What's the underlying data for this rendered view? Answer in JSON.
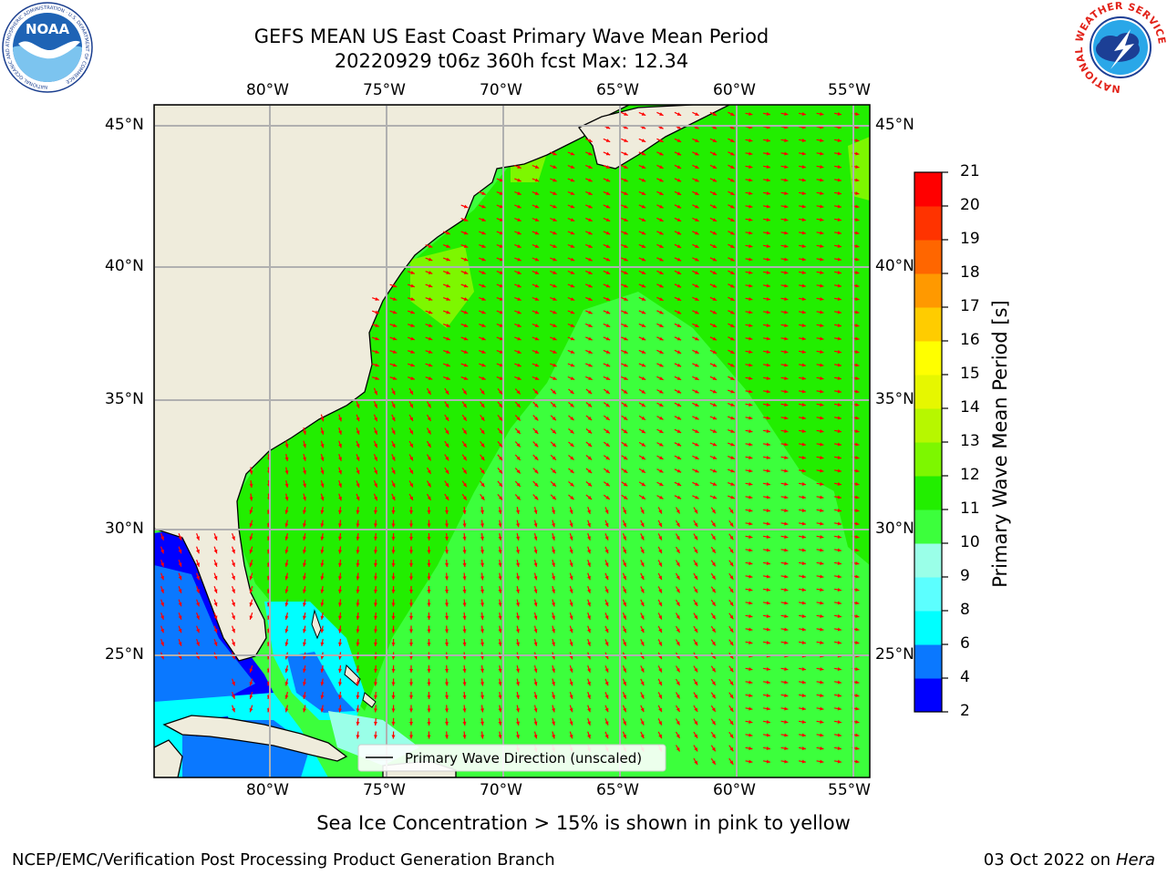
{
  "title": {
    "line1": "GEFS MEAN US East Coast Primary Wave Mean Period",
    "line2": "20220929 t06z 360h fcst   Max: 12.34"
  },
  "map": {
    "lon_labels": [
      "80°W",
      "75°W",
      "70°W",
      "65°W",
      "60°W",
      "55°W"
    ],
    "lat_labels": [
      "45°N",
      "40°N",
      "35°N",
      "30°N",
      "25°N"
    ],
    "legend_label": "Primary Wave Direction (unscaled)",
    "land_color": "#efecdc",
    "arrow_color": "#ff0000"
  },
  "colorbar": {
    "label": "Primary Wave Mean Period [s]",
    "ticks": [
      "2",
      "4",
      "6",
      "8",
      "9",
      "10",
      "11",
      "12",
      "13",
      "14",
      "15",
      "16",
      "17",
      "18",
      "19",
      "20",
      "21"
    ],
    "colors": [
      "#0000ff",
      "#0a78ff",
      "#00ffff",
      "#5cffff",
      "#9affe8",
      "#3cff3c",
      "#22ee00",
      "#7df700",
      "#b7f700",
      "#e6f700",
      "#ffff00",
      "#ffcc00",
      "#ff9900",
      "#ff6600",
      "#ff3300",
      "#ff0000"
    ]
  },
  "subtitle": "Sea Ice Concentration > 15% is shown in pink to yellow",
  "footer": {
    "left": "NCEP/EMC/Verification Post Processing Product Generation Branch",
    "right_date": "03 Oct 2022 on ",
    "right_host": "Hera"
  },
  "logos": {
    "left_text": "NOAA",
    "left_ring": "NATIONAL OCEANIC AND ATMOSPHERIC ADMINISTRATION · U.S. DEPARTMENT OF COMMERCE",
    "right_ring": "NATIONAL WEATHER SERVICE"
  }
}
